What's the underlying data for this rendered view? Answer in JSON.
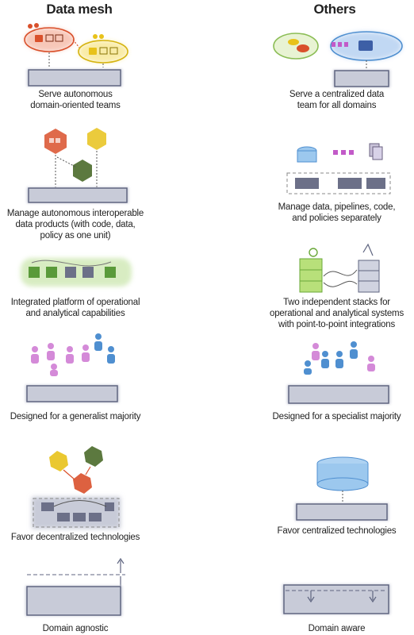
{
  "headers": {
    "left": "Data mesh",
    "right": "Others"
  },
  "left": {
    "row1": [
      "Serve autonomous",
      "domain-oriented teams"
    ],
    "row2": [
      "Manage autonomous interoperable",
      "data products (with code, data,",
      "policy as one unit)"
    ],
    "row3": [
      "Integrated platform of operational",
      "and analytical capabilities"
    ],
    "row4": [
      "Designed for a generalist majority"
    ],
    "row5": [
      "Favor decentralized technologies"
    ],
    "row6": [
      "Domain agnostic"
    ]
  },
  "right": {
    "row1": [
      "Serve a centralized data",
      "team for all domains"
    ],
    "row2": [
      "Manage data, pipelines, code,",
      "and policies separately"
    ],
    "row3": [
      "Two independent stacks for",
      "operational and analytical systems",
      "with point-to-point integrations"
    ],
    "row4": [
      "Designed for a specialist majority"
    ],
    "row5": [
      "Favor centralized technologies"
    ],
    "row6": [
      "Domain aware"
    ]
  },
  "colors": {
    "platform": "#5f6580",
    "platform_fill": "#c8cbd8",
    "red": "#d9502b",
    "yellow": "#e8c21a",
    "green": "#5a8a3a",
    "blue": "#4f8fd0",
    "magenta": "#c25ac8",
    "lightgreen": "#9bd06a"
  }
}
